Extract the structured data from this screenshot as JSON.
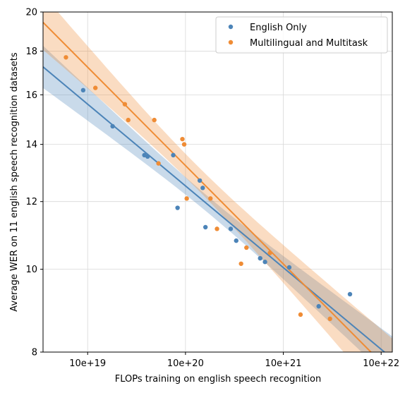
{
  "chart_data": {
    "type": "scatter",
    "title": "",
    "xlabel": "FLOPs training on english speech recognition",
    "ylabel": "Average WER on 11 english speech recognition datasets",
    "x_scale": "log",
    "y_scale": "log",
    "xlim": [
      3.5e+18,
      1.3e+22
    ],
    "ylim": [
      8,
      20
    ],
    "xticks": [
      1e+19,
      1e+20,
      1e+21,
      1e+22
    ],
    "xtick_labels": [
      "10e+19",
      "10e+20",
      "10e+21",
      "10e+22"
    ],
    "yticks": [
      8,
      10,
      12,
      14,
      16,
      18,
      20
    ],
    "ytick_labels": [
      "8",
      "10",
      "12",
      "14",
      "16",
      "18",
      "20"
    ],
    "grid": true,
    "legend_position": "top-right",
    "series": [
      {
        "name": "English Only",
        "color": "#4c84b8",
        "points": [
          {
            "x": 9e+18,
            "y": 16.2
          },
          {
            "x": 1.8e+19,
            "y": 14.7
          },
          {
            "x": 3.8e+19,
            "y": 13.6
          },
          {
            "x": 4.1e+19,
            "y": 13.55
          },
          {
            "x": 7.5e+19,
            "y": 13.6
          },
          {
            "x": 8.3e+19,
            "y": 11.8
          },
          {
            "x": 1.4e+20,
            "y": 12.7
          },
          {
            "x": 1.5e+20,
            "y": 12.45
          },
          {
            "x": 1.6e+20,
            "y": 11.2
          },
          {
            "x": 2.9e+20,
            "y": 11.15
          },
          {
            "x": 3.3e+20,
            "y": 10.8
          },
          {
            "x": 5.8e+20,
            "y": 10.3
          },
          {
            "x": 6.5e+20,
            "y": 10.2
          },
          {
            "x": 1.15e+21,
            "y": 10.05
          },
          {
            "x": 2.3e+21,
            "y": 9.05
          },
          {
            "x": 4.8e+21,
            "y": 9.35
          }
        ],
        "fit": {
          "x": [
            3.5e+18,
            1.3e+22
          ],
          "y": [
            17.25,
            7.86
          ]
        }
      },
      {
        "name": "Multilingual and Multitask",
        "color": "#ef8c35",
        "points": [
          {
            "x": 6e+18,
            "y": 17.7
          },
          {
            "x": 1.2e+19,
            "y": 16.3
          },
          {
            "x": 2.4e+19,
            "y": 15.6
          },
          {
            "x": 2.6e+19,
            "y": 14.95
          },
          {
            "x": 4.8e+19,
            "y": 14.95
          },
          {
            "x": 5.3e+19,
            "y": 13.3
          },
          {
            "x": 9.3e+19,
            "y": 14.2
          },
          {
            "x": 9.7e+19,
            "y": 14.0
          },
          {
            "x": 1.03e+20,
            "y": 12.1
          },
          {
            "x": 1.8e+20,
            "y": 12.1
          },
          {
            "x": 2.1e+20,
            "y": 11.15
          },
          {
            "x": 3.7e+20,
            "y": 10.15
          },
          {
            "x": 4.2e+20,
            "y": 10.6
          },
          {
            "x": 7.3e+20,
            "y": 10.45
          },
          {
            "x": 1.5e+21,
            "y": 8.85
          },
          {
            "x": 3e+21,
            "y": 8.75
          }
        ],
        "fit": {
          "x": [
            3.5e+18,
            1.3e+22
          ],
          "y": [
            19.45,
            7.55
          ]
        }
      }
    ]
  }
}
